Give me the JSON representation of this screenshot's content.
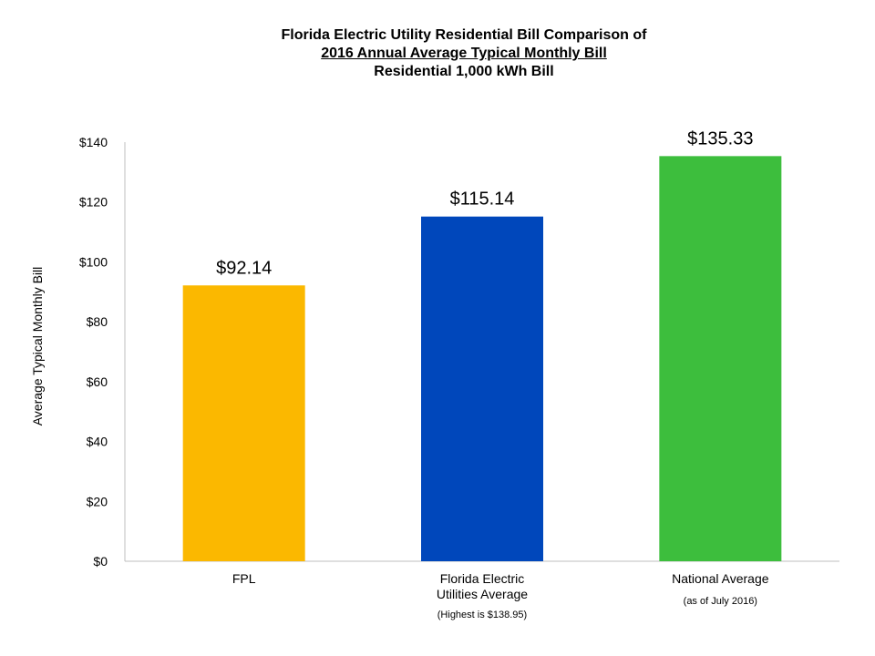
{
  "chart_data": {
    "type": "bar",
    "title_lines": [
      "Florida Electric Utility Residential Bill Comparison of",
      "2016 Annual Average Typical Monthly Bill",
      "Residential 1,000 kWh Bill"
    ],
    "ylabel": "Average Typical Monthly Bill",
    "ylim": [
      0,
      140
    ],
    "yticks": [
      0,
      20,
      40,
      60,
      80,
      100,
      120,
      140
    ],
    "ytick_labels": [
      "$0",
      "$20",
      "$40",
      "$60",
      "$80",
      "$100",
      "$120",
      "$140"
    ],
    "bars": [
      {
        "category_lines": [
          "FPL"
        ],
        "note": "",
        "value": 92.14,
        "label": "$92.14",
        "color": "#FBB800"
      },
      {
        "category_lines": [
          "Florida Electric",
          "Utilities Average"
        ],
        "note": "(Highest is $138.95)",
        "value": 115.14,
        "label": "$115.14",
        "color": "#0047BB"
      },
      {
        "category_lines": [
          "National Average"
        ],
        "note": "(as of July 2016)",
        "value": 135.33,
        "label": "$135.33",
        "color": "#3DBE3D"
      }
    ],
    "grid": false,
    "legend": "none"
  }
}
